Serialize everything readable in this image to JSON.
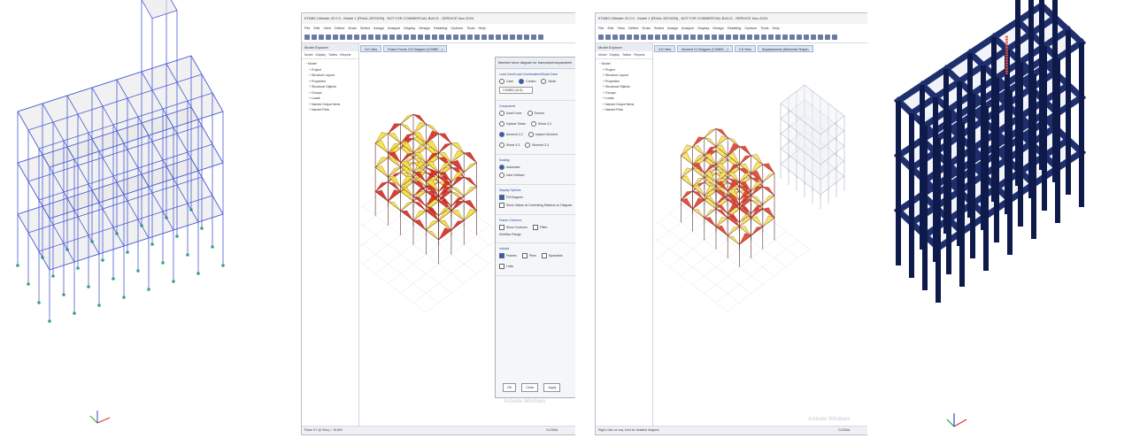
{
  "panel2": {
    "title": "ETABS Ultimate 22.0.0 - Model 1 [FINAL-DESIGN] - NOTYOR COMMERCIAL BUILD - SERVICE Nov-2024",
    "menu": [
      "File",
      "Edit",
      "View",
      "Define",
      "Draw",
      "Select",
      "Assign",
      "Analyze",
      "Display",
      "Design",
      "Detailing",
      "Options",
      "Tools",
      "Help"
    ],
    "explorer_title": "Model Explorer",
    "explorer_tabs": [
      "Model",
      "Display",
      "Tables",
      "Reports"
    ],
    "tree": [
      "Model",
      "Project",
      "Structure Layout",
      "Properties",
      "Structural Objects",
      "Groups",
      "Loads",
      "Named Output Items",
      "Named Plots"
    ],
    "tabs": [
      "3-D View",
      "Frame Forces 3-D Diagram (COMB2 ...)"
    ],
    "dialog": {
      "title": "Member force diagram for frames/piers/spandrels",
      "group1_title": "Load Case/Load Combination/Modal Case",
      "group1_options": [
        "Case",
        "Combo",
        "Mode"
      ],
      "combo_value": "COMB2 (ULS)",
      "group2_title": "Component",
      "component_options": [
        "Axial Force",
        "Torsion",
        "Inplane Shear",
        "Shear 2-2",
        "Moment 2-2",
        "Inplane Moment",
        "Shear 3-3",
        "Moment 3-3"
      ],
      "group3_title": "Scaling",
      "scaling_options": [
        "Automatic",
        "User Defined"
      ],
      "group4_title": "Display Options",
      "display_options": [
        "Fill Diagram",
        "Show Values at Controlling Stations on Diagram"
      ],
      "group5_title": "Frame Contours",
      "contour_options": [
        "Show Contours",
        "Filled"
      ],
      "min_max_label": "Min/Max Range",
      "group6_title": "Include",
      "include_options": [
        "Frames",
        "Piers",
        "Spandrels",
        "Links"
      ],
      "ok": "OK",
      "close": "Close",
      "apply": "Apply"
    },
    "status_left": "Plane XY @ Story = 15.800",
    "status_right": "GLOBAL",
    "watermark": "Activate Windows",
    "watermark_sub": "Go to Settings to activate Windows."
  },
  "panel3": {
    "title": "ETABS Ultimate 22.0.0 - Model 1 [FINAL-DESIGN] - NOTYOR COMMERCIAL BUILD - SERVICE Nov-2024",
    "menu": [
      "File",
      "Edit",
      "View",
      "Define",
      "Draw",
      "Select",
      "Assign",
      "Analyze",
      "Display",
      "Design",
      "Detailing",
      "Options",
      "Tools",
      "Help"
    ],
    "explorer_title": "Model Explorer",
    "explorer_tabs": [
      "Model",
      "Display",
      "Tables",
      "Reports"
    ],
    "tree": [
      "Model",
      "Project",
      "Structure Layout",
      "Properties",
      "Structural Objects",
      "Groups",
      "Loads",
      "Named Output Items",
      "Named Plots"
    ],
    "tabs": [
      "3-D View",
      "Moment 3-3 Diagram (COMB2 ...)",
      "3-D View",
      "Displacements (Deformed Shape)"
    ],
    "status_left": "Right-Click on any Joint for detailed diagram",
    "status_right": "GLOBAL",
    "watermark": "Activate Windows",
    "watermark_sub": "Go to Settings to activate Windows."
  }
}
